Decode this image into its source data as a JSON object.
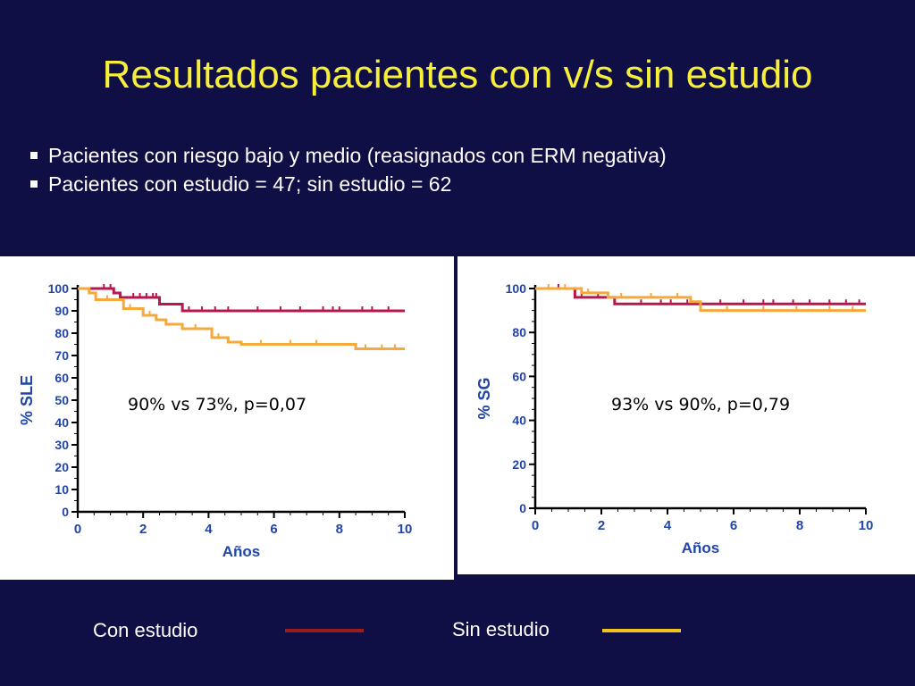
{
  "slide": {
    "title": "Resultados pacientes con v/s sin estudio",
    "bullets": [
      "Pacientes con riesgo bajo y medio (reasignados con ERM negativa)",
      "Pacientes con estudio = 47; sin estudio = 62"
    ]
  },
  "colors": {
    "background": "#0f0f45",
    "title": "#f6ee3a",
    "con_estudio": "#b5174e",
    "sin_estudio": "#f5a83c",
    "legend_con": "#9b1c1c",
    "legend_sin": "#f2c21e"
  },
  "legend": {
    "con_label": "Con estudio",
    "sin_label": "Sin estudio"
  },
  "chart_data": [
    {
      "type": "line",
      "ylabel": "% SLE",
      "xlabel": "Años",
      "xlim": [
        0,
        10
      ],
      "ylim": [
        0,
        100
      ],
      "xticks": [
        "0",
        "2",
        "4",
        "6",
        "8",
        "10"
      ],
      "yticks": [
        "0",
        "10",
        "20",
        "30",
        "40",
        "50",
        "60",
        "70",
        "80",
        "90",
        "100"
      ],
      "annotation": "90%  vs 73%, p=0,07",
      "series": [
        {
          "name": "Con estudio",
          "color": "#b5174e",
          "x": [
            0,
            0.65,
            1.1,
            1.3,
            2.4,
            2.5,
            3.0,
            3.2,
            10
          ],
          "y": [
            100,
            100,
            98,
            96,
            96,
            93,
            93,
            90,
            90
          ],
          "censor_x": [
            0.8,
            1.0,
            1.7,
            1.9,
            2.1,
            2.3,
            2.4,
            3.4,
            3.8,
            4.2,
            4.6,
            5.5,
            6.2,
            6.8,
            7.5,
            7.8,
            8.0,
            8.7,
            9.0,
            9.5
          ]
        },
        {
          "name": "Sin estudio",
          "color": "#f5a83c",
          "x": [
            0,
            0.35,
            0.55,
            1.4,
            2.0,
            2.4,
            2.7,
            3.2,
            4.1,
            4.6,
            5.0,
            8.5,
            10
          ],
          "y": [
            100,
            98,
            95,
            91,
            88,
            86,
            84,
            82,
            78,
            76,
            75,
            73,
            73
          ],
          "censor_x": [
            0.9,
            1.6,
            2.2,
            3.6,
            4.3,
            5.6,
            6.5,
            7.3,
            8.8,
            9.3,
            9.7
          ]
        }
      ]
    },
    {
      "type": "line",
      "ylabel": "% SG",
      "xlabel": "Años",
      "xlim": [
        0,
        10
      ],
      "ylim": [
        0,
        100
      ],
      "xticks": [
        "0",
        "2",
        "4",
        "6",
        "8",
        "10"
      ],
      "yticks": [
        "0",
        "20",
        "40",
        "60",
        "80",
        "100"
      ],
      "annotation": "93%  vs 90%, p=0,79",
      "series": [
        {
          "name": "Con estudio",
          "color": "#b5174e",
          "x": [
            0,
            0.6,
            1.2,
            2.4,
            10
          ],
          "y": [
            100,
            100,
            96,
            93,
            93
          ],
          "censor_x": [
            0.7,
            1.4,
            1.9,
            3.2,
            3.8,
            4.1,
            4.6,
            5.6,
            6.3,
            6.9,
            7.2,
            7.8,
            8.3,
            8.9,
            9.4,
            9.8
          ]
        },
        {
          "name": "Sin estudio",
          "color": "#f5a83c",
          "x": [
            0,
            1.4,
            2.2,
            4.7,
            5.0,
            10
          ],
          "y": [
            100,
            98,
            96,
            94,
            90,
            90
          ],
          "censor_x": [
            0.4,
            0.9,
            1.6,
            2.6,
            3.5,
            4.3,
            5.8,
            6.9,
            7.9,
            8.9,
            9.6
          ]
        }
      ]
    }
  ]
}
